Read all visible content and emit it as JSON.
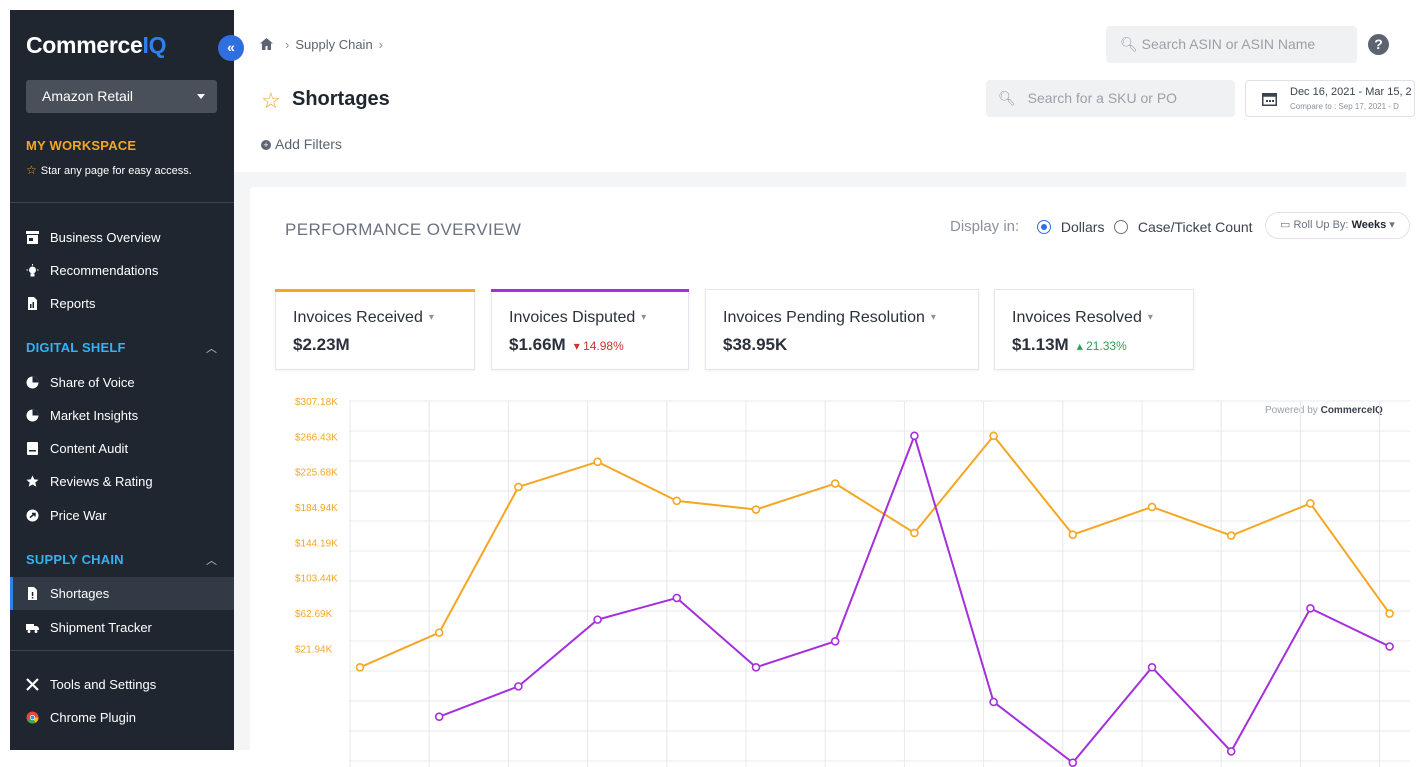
{
  "sidebar": {
    "logo": {
      "main": "Commerce",
      "accent": "IQ"
    },
    "collapse_glyph": "«",
    "account": "Amazon Retail",
    "workspace_title": "MY WORKSPACE",
    "workspace_hint": "Star any page for easy access.",
    "items_top": [
      {
        "label": "Business Overview",
        "icon": "store-icon"
      },
      {
        "label": "Recommendations",
        "icon": "bulb-icon"
      },
      {
        "label": "Reports",
        "icon": "report-icon"
      }
    ],
    "digital_shelf": {
      "title": "DIGITAL SHELF",
      "items": [
        {
          "label": "Share of Voice",
          "icon": "pie-icon"
        },
        {
          "label": "Market Insights",
          "icon": "pie-icon"
        },
        {
          "label": "Content Audit",
          "icon": "document-icon"
        },
        {
          "label": "Reviews & Rating",
          "icon": "star-icon"
        },
        {
          "label": "Price War",
          "icon": "price-icon"
        }
      ]
    },
    "supply_chain": {
      "title": "SUPPLY CHAIN",
      "items": [
        {
          "label": "Shortages",
          "icon": "file-icon",
          "active": true
        },
        {
          "label": "Shipment Tracker",
          "icon": "truck-icon"
        }
      ]
    },
    "items_bottom": [
      {
        "label": "Tools and Settings",
        "icon": "tools-icon"
      },
      {
        "label": "Chrome Plugin",
        "icon": "chrome-icon"
      }
    ]
  },
  "header": {
    "breadcrumb": [
      "Supply Chain"
    ],
    "top_search_placeholder": "Search ASIN or ASIN Name",
    "help": "?",
    "title": "Shortages",
    "sku_search_placeholder": "Search for a SKU or PO",
    "date_range": "Dec 16, 2021 - Mar 15, 2",
    "compare_to": "Compare to : Sep 17, 2021 - D",
    "add_filters": "Add Filters"
  },
  "overview": {
    "title": "PERFORMANCE OVERVIEW",
    "display_in_label": "Display in:",
    "options": [
      "Dollars",
      "Case/Ticket Count"
    ],
    "selected_option": "Dollars",
    "rollup_label": "Roll Up By:",
    "rollup_value": "Weeks",
    "metrics": [
      {
        "label": "Invoices Received",
        "value": "$2.23M",
        "delta": "",
        "direction": "",
        "color": "#f5a623"
      },
      {
        "label": "Invoices Disputed",
        "value": "$1.66M",
        "delta": "14.98%",
        "direction": "down",
        "color": "#a52fdc"
      },
      {
        "label": "Invoices Pending Resolution",
        "value": "$38.95K",
        "delta": "",
        "direction": "",
        "color": ""
      },
      {
        "label": "Invoices Resolved",
        "value": "$1.13M",
        "delta": "21.33%",
        "direction": "up",
        "color": ""
      }
    ],
    "powered_by": "Powered by",
    "powered_brand": "CommerceIQ"
  },
  "chart_data": {
    "type": "line",
    "y_tick_labels": [
      "$307.18K",
      "$266.43K",
      "$225.68K",
      "$184.94K",
      "$144.19K",
      "$103.44K",
      "$62.69K",
      "$21.94K"
    ],
    "ylim": [
      -115000,
      307180
    ],
    "grid": true,
    "series": [
      {
        "color": "#f5a623",
        "values": [
          0,
          40000,
          208000,
          237000,
          192000,
          182000,
          212000,
          155000,
          267000,
          153000,
          185000,
          152000,
          189000,
          62000
        ]
      },
      {
        "color": "#a52fdc",
        "values": [
          null,
          -57000,
          -22000,
          55000,
          80000,
          0,
          30000,
          267000,
          -40000,
          -110000,
          0,
          -97000,
          68000,
          24000
        ]
      }
    ]
  }
}
